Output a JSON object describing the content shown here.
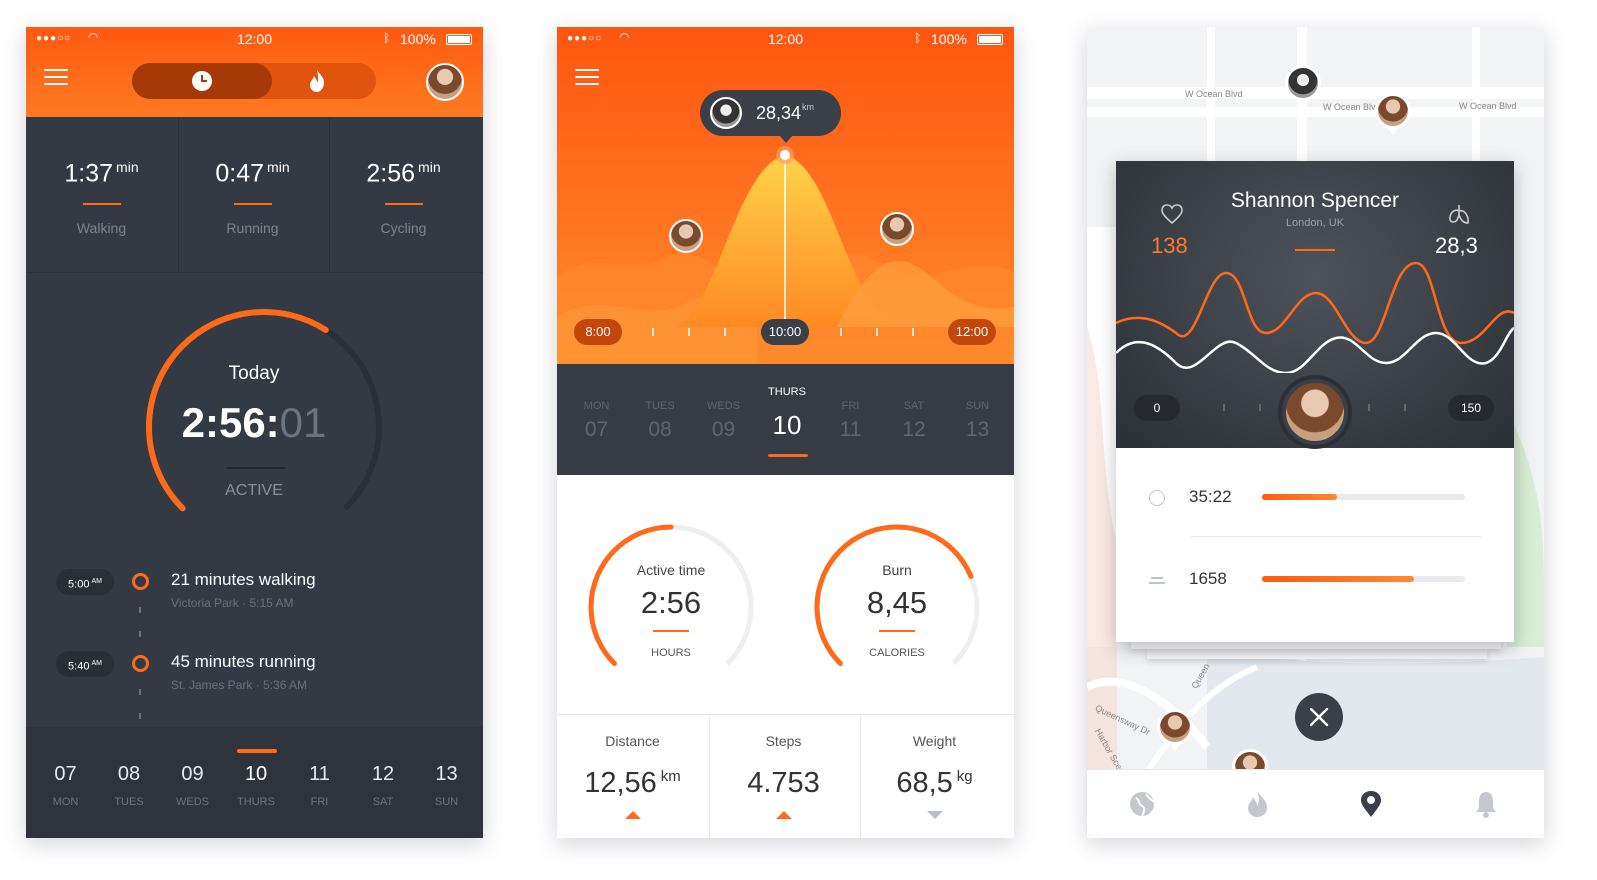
{
  "status_bar": {
    "time": "12:00",
    "battery": "100%"
  },
  "screen1": {
    "stats": [
      {
        "value": "1:37",
        "unit": "min",
        "label": "Walking"
      },
      {
        "value": "0:47",
        "unit": "min",
        "label": "Running"
      },
      {
        "value": "2:56",
        "unit": "min",
        "label": "Cycling"
      }
    ],
    "gauge": {
      "label": "Today",
      "time_main": "2:56:",
      "time_sec": "01",
      "status": "ACTIVE",
      "progress": 0.62
    },
    "timeline": [
      {
        "time": "5:00",
        "ampm": "AM",
        "title": "21 minutes walking",
        "sub": "Victoria Park · 5:15 AM"
      },
      {
        "time": "5:40",
        "ampm": "AM",
        "title": "45 minutes running",
        "sub": "St. James Park · 5:36 AM"
      }
    ],
    "days": [
      {
        "num": "07",
        "name": "MON"
      },
      {
        "num": "08",
        "name": "TUES"
      },
      {
        "num": "09",
        "name": "WEDS"
      },
      {
        "num": "10",
        "name": "THURS"
      },
      {
        "num": "11",
        "name": "FRI"
      },
      {
        "num": "12",
        "name": "SAT"
      },
      {
        "num": "13",
        "name": "SUN"
      }
    ],
    "active_day_index": 3,
    "accent": "#ff6a1a"
  },
  "screen2": {
    "bubble": {
      "value": "28,34",
      "unit": "km"
    },
    "time_start": "8:00",
    "time_mid": "10:00",
    "time_end": "12:00",
    "days": [
      {
        "name": "MON",
        "num": "07"
      },
      {
        "name": "TUES",
        "num": "08"
      },
      {
        "name": "WEDS",
        "num": "09"
      },
      {
        "name": "THURS",
        "num": "10"
      },
      {
        "name": "FRI",
        "num": "11"
      },
      {
        "name": "SAT",
        "num": "12"
      },
      {
        "name": "SUN",
        "num": "13"
      }
    ],
    "active_day_index": 3,
    "gauge_left": {
      "label": "Active time",
      "value": "2:56",
      "unit": "HOURS",
      "progress": 0.5
    },
    "gauge_right": {
      "label": "Burn",
      "value": "8,45",
      "unit": "CALORIES",
      "progress": 0.75
    },
    "metrics": [
      {
        "label": "Distance",
        "value": "12,56",
        "unit": "km",
        "trend": "up"
      },
      {
        "label": "Steps",
        "value": "4.753",
        "unit": "",
        "trend": "up"
      },
      {
        "label": "Weight",
        "value": "68,5",
        "unit": "kg",
        "trend": "down"
      }
    ]
  },
  "screen3": {
    "map_labels": [
      "W Ocean Blvd",
      "W Ocean Blvd",
      "W Ocean Blvd",
      "Queensway Dr",
      "Harbor Scenic",
      "Queen"
    ],
    "card": {
      "name": "Shannon Spencer",
      "location": "London, UK",
      "heart_value": "138",
      "lungs_value": "28,3",
      "range_min": "0",
      "range_max": "150"
    },
    "stats": [
      {
        "icon": "clock-icon",
        "value": "35:22",
        "progress": 0.37
      },
      {
        "icon": "stairs-icon",
        "value": "1658",
        "progress": 0.75
      }
    ],
    "nav": [
      "globe-icon",
      "flame-icon",
      "location-pin-icon",
      "bell-icon"
    ],
    "active_nav_index": 2
  }
}
